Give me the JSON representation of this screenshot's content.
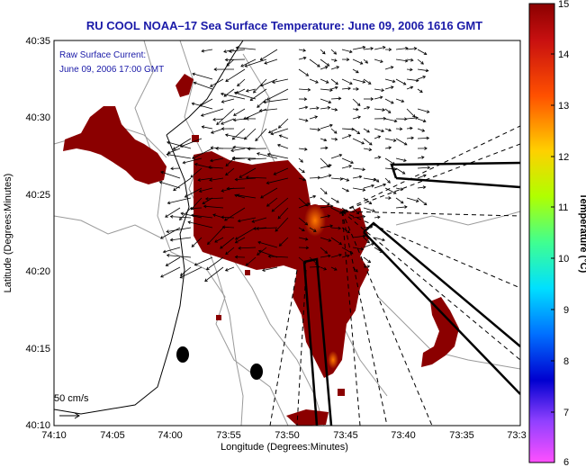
{
  "title": "RU COOL  NOAA–17  Sea Surface Temperature:  June 09, 2006 1616 GMT",
  "annotation": {
    "line1": "Raw Surface Current:",
    "line2": "June 09, 2006 17:00 GMT"
  },
  "x_axis": {
    "label": "Longitude (Degrees:Minutes)",
    "ticks": [
      "74:10",
      "74:05",
      "74:00",
      "73:55",
      "73:50",
      "73:45",
      "73:40",
      "73:35",
      "73:3"
    ]
  },
  "y_axis": {
    "label": "Latitude (Degrees:Minutes)",
    "ticks": [
      "40:35",
      "40:30",
      "40:25",
      "40:20",
      "40:15",
      "40:10"
    ]
  },
  "scale_label": "50 cm/s",
  "colorbar": {
    "label": "Temperature (°C)",
    "ticks": [
      "15",
      "14",
      "13",
      "12",
      "11",
      "10",
      "9",
      "8",
      "7",
      "6"
    ],
    "colors": [
      "#8b0000",
      "#c81010",
      "#ff6a00",
      "#ffcc00",
      "#c8ff00",
      "#40ff80",
      "#00e0ff",
      "#0060ff",
      "#0000c0",
      "#a040ff",
      "#ff40ff"
    ]
  },
  "colors": {
    "sst_fill": "#8b0000",
    "title": "#1a1aa8"
  }
}
